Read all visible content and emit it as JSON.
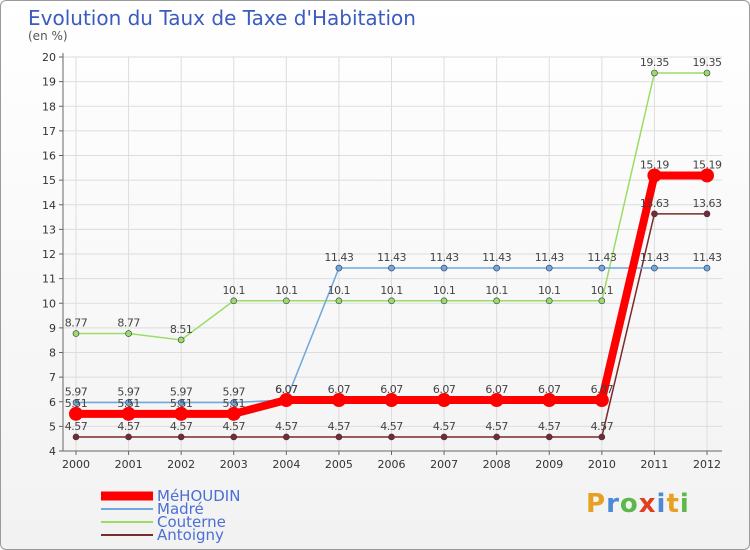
{
  "title": "Evolution du Taux de Taxe d'Habitation",
  "subtitle": "(en %)",
  "logo": "Proxiti",
  "chart_data": {
    "type": "line",
    "title": "Evolution du Taux de Taxe d'Habitation",
    "ylabel": "(en %)",
    "xlabel": "",
    "ylim": [
      4,
      20
    ],
    "y_ticks": [
      4,
      5,
      6,
      7,
      8,
      9,
      10,
      11,
      12,
      13,
      14,
      15,
      16,
      17,
      18,
      19,
      20
    ],
    "grid": true,
    "legend_position": "bottom-left",
    "categories": [
      "2000",
      "2001",
      "2002",
      "2003",
      "2004",
      "2005",
      "2006",
      "2007",
      "2008",
      "2009",
      "2010",
      "2011",
      "2012"
    ],
    "series": [
      {
        "name": "MéHOUDIN",
        "color": "#ff0000",
        "values": [
          5.51,
          5.51,
          5.51,
          5.51,
          6.07,
          6.07,
          6.07,
          6.07,
          6.07,
          6.07,
          6.07,
          15.19,
          15.19
        ]
      },
      {
        "name": "Madré",
        "color": "#6fa8dc",
        "values": [
          5.97,
          5.97,
          5.97,
          5.97,
          6.07,
          11.43,
          11.43,
          11.43,
          11.43,
          11.43,
          11.43,
          11.43,
          11.43
        ]
      },
      {
        "name": "Couterne",
        "color": "#99dd66",
        "values": [
          8.77,
          8.77,
          8.51,
          10.1,
          10.1,
          10.1,
          10.1,
          10.1,
          10.1,
          10.1,
          10.1,
          19.35,
          19.35
        ]
      },
      {
        "name": "Antoigny",
        "color": "#7a2a2a",
        "values": [
          4.57,
          4.57,
          4.57,
          4.57,
          4.57,
          4.57,
          4.57,
          4.57,
          4.57,
          4.57,
          4.57,
          13.63,
          13.63
        ]
      }
    ]
  }
}
